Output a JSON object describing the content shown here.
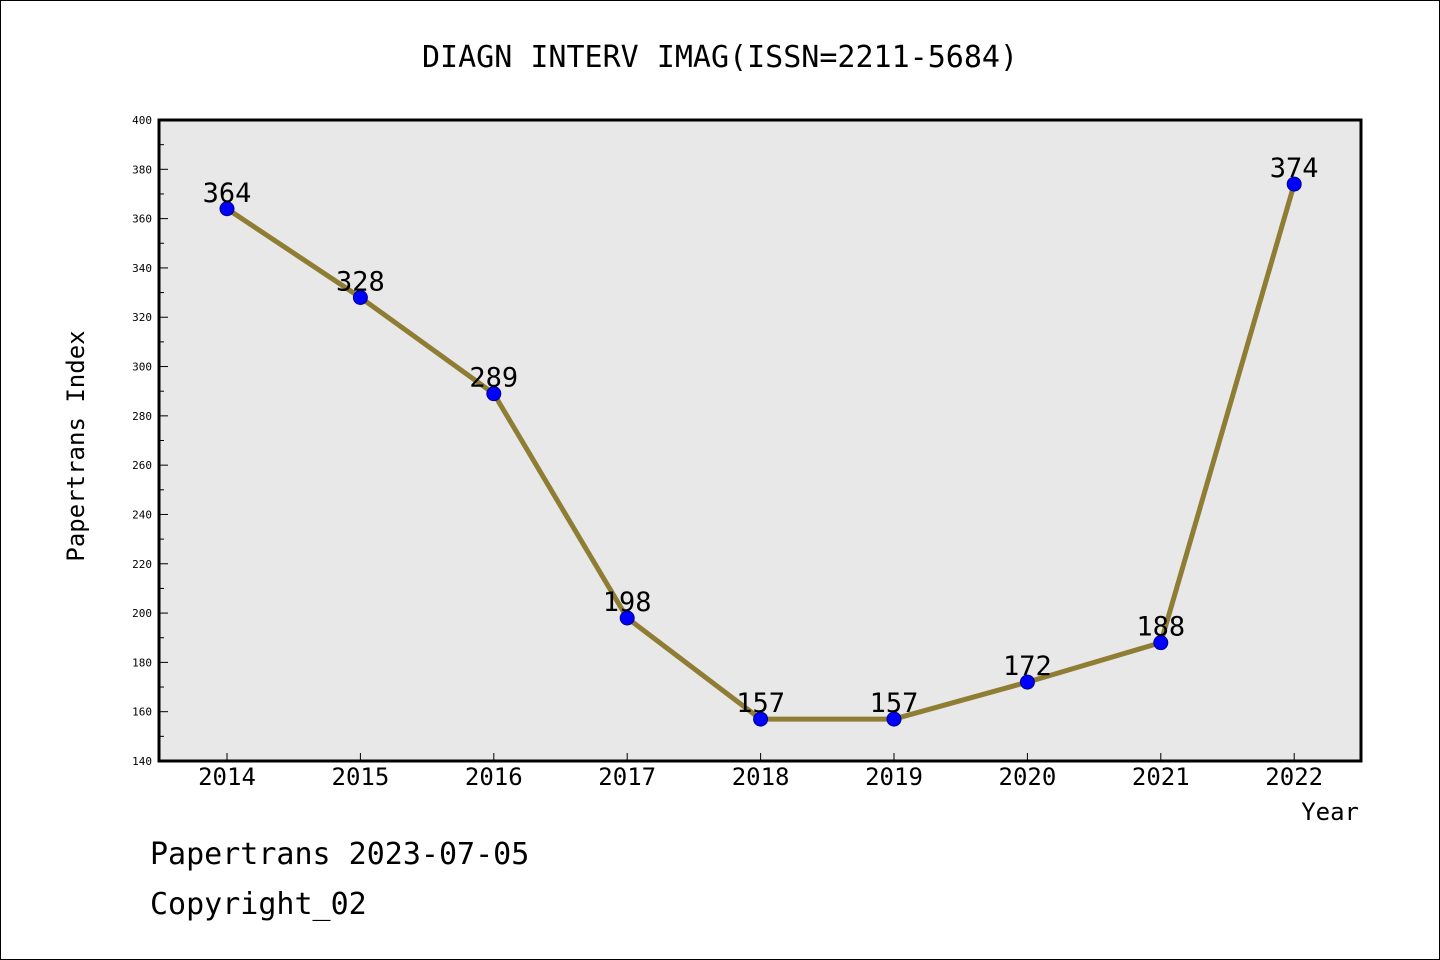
{
  "chart_data": {
    "type": "line",
    "title": "DIAGN INTERV IMAG(ISSN=2211-5684)",
    "xlabel": "Year",
    "ylabel": "Papertrans Index",
    "categories": [
      "2014",
      "2015",
      "2016",
      "2017",
      "2018",
      "2019",
      "2020",
      "2021",
      "2022"
    ],
    "values": [
      364,
      328,
      289,
      198,
      157,
      157,
      172,
      188,
      374
    ],
    "ylim": [
      140,
      400
    ],
    "yticks": [
      140,
      160,
      180,
      200,
      220,
      240,
      260,
      280,
      300,
      320,
      340,
      360,
      380,
      400
    ],
    "grid": false,
    "legend": "none",
    "colors": {
      "line": "#8f7d33",
      "marker": "#0000ff",
      "plot_background": "#e8e8e8"
    }
  },
  "footer": {
    "line1": "Papertrans 2023-07-05",
    "line2": "Copyright_02"
  }
}
